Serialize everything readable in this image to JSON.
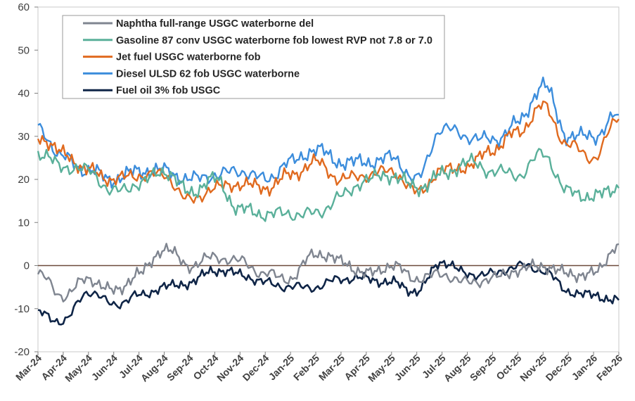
{
  "chart_data": {
    "type": "line",
    "title": "",
    "xlabel": "",
    "ylabel": "",
    "ylim": [
      -20,
      60
    ],
    "yticks": [
      "60",
      "50",
      "40",
      "30",
      "20",
      "10",
      "0",
      "-10",
      "-20"
    ],
    "x": [
      "Mar-24",
      "Apr-24",
      "May-24",
      "Jun-24",
      "Jul-24",
      "Aug-24",
      "Sep-24",
      "Oct-24",
      "Nov-24",
      "Dec-24",
      "Jan-25",
      "Feb-25",
      "Mar-25",
      "Apr-25",
      "May-25",
      "Jun-25",
      "Jul-25",
      "Aug-25",
      "Sep-25",
      "Oct-25",
      "Nov-25",
      "Dec-25",
      "Jan-26",
      "Feb-26"
    ],
    "legend_position": "top-center",
    "zero_line": true,
    "series": [
      {
        "name": "Naphtha full-range USGC waterborne del",
        "color": "#7f8590",
        "values": [
          -2,
          -7,
          -3,
          -6,
          -2,
          4,
          0,
          2,
          1,
          -2,
          -3,
          3,
          1,
          -2,
          0,
          -3,
          -2,
          -4,
          -3,
          -1,
          0,
          -2,
          -2,
          5
        ]
      },
      {
        "name": "Gasoline 87 conv USGC waterborne fob lowest RVP not 7.8 or 7.0",
        "color": "#5ab09a",
        "values": [
          26,
          23,
          22,
          17,
          19,
          22,
          17,
          20,
          13,
          12,
          12,
          12,
          16,
          20,
          21,
          18,
          21,
          24,
          22,
          21,
          26,
          17,
          16,
          18
        ]
      },
      {
        "name": "Jet fuel USGC waterborne fob",
        "color": "#e06a1f",
        "values": [
          30,
          26,
          22,
          20,
          21,
          21,
          15,
          18,
          19,
          18,
          21,
          24,
          20,
          21,
          22,
          17,
          22,
          23,
          27,
          31,
          37,
          28,
          25,
          34
        ]
      },
      {
        "name": "Diesel ULSD 62 fob USGC waterborne",
        "color": "#3c8ddc",
        "values": [
          32,
          25,
          22,
          20,
          22,
          22,
          20,
          21,
          22,
          20,
          24,
          27,
          24,
          24,
          25,
          20,
          32,
          30,
          29,
          33,
          42,
          30,
          30,
          35
        ]
      },
      {
        "name": "Fuel oil 3% fob USGC",
        "color": "#0f2547",
        "values": [
          -11,
          -13,
          -6,
          -9,
          -7,
          -5,
          -4,
          -1,
          -2,
          -4,
          -5,
          -5,
          -3,
          -3,
          -4,
          -6,
          1,
          -2,
          -2,
          0,
          -1,
          -6,
          -7,
          -8
        ]
      }
    ]
  }
}
